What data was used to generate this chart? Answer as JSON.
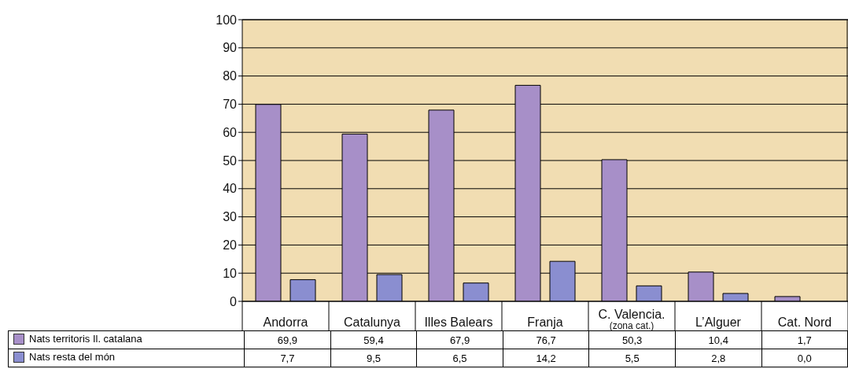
{
  "chart_data": {
    "type": "bar",
    "categories": [
      "Andorra",
      "Catalunya",
      "Illes Balears",
      "Franja",
      "C. Valencia.\n(zona cat.)",
      "L’Alguer",
      "Cat. Nord"
    ],
    "series": [
      {
        "name": "Nats territoris Il. catalana",
        "color": "#a78fc8",
        "values": [
          69.9,
          59.4,
          67.9,
          76.7,
          50.3,
          10.4,
          1.7
        ],
        "value_labels": [
          "69,9",
          "59,4",
          "67,9",
          "76,7",
          "50,3",
          "10,4",
          "1,7"
        ]
      },
      {
        "name": "Nats resta del món",
        "color": "#8a8ed0",
        "values": [
          7.7,
          9.5,
          6.5,
          14.2,
          5.5,
          2.8,
          0.0
        ],
        "value_labels": [
          "7,7",
          "9,5",
          "6,5",
          "14,2",
          "5,5",
          "2,8",
          "0,0"
        ]
      }
    ],
    "ylim": [
      0,
      100
    ],
    "yticks": [
      0,
      10,
      20,
      30,
      40,
      50,
      60,
      70,
      80,
      90,
      100
    ],
    "grid": "y",
    "legend": "bottom"
  }
}
